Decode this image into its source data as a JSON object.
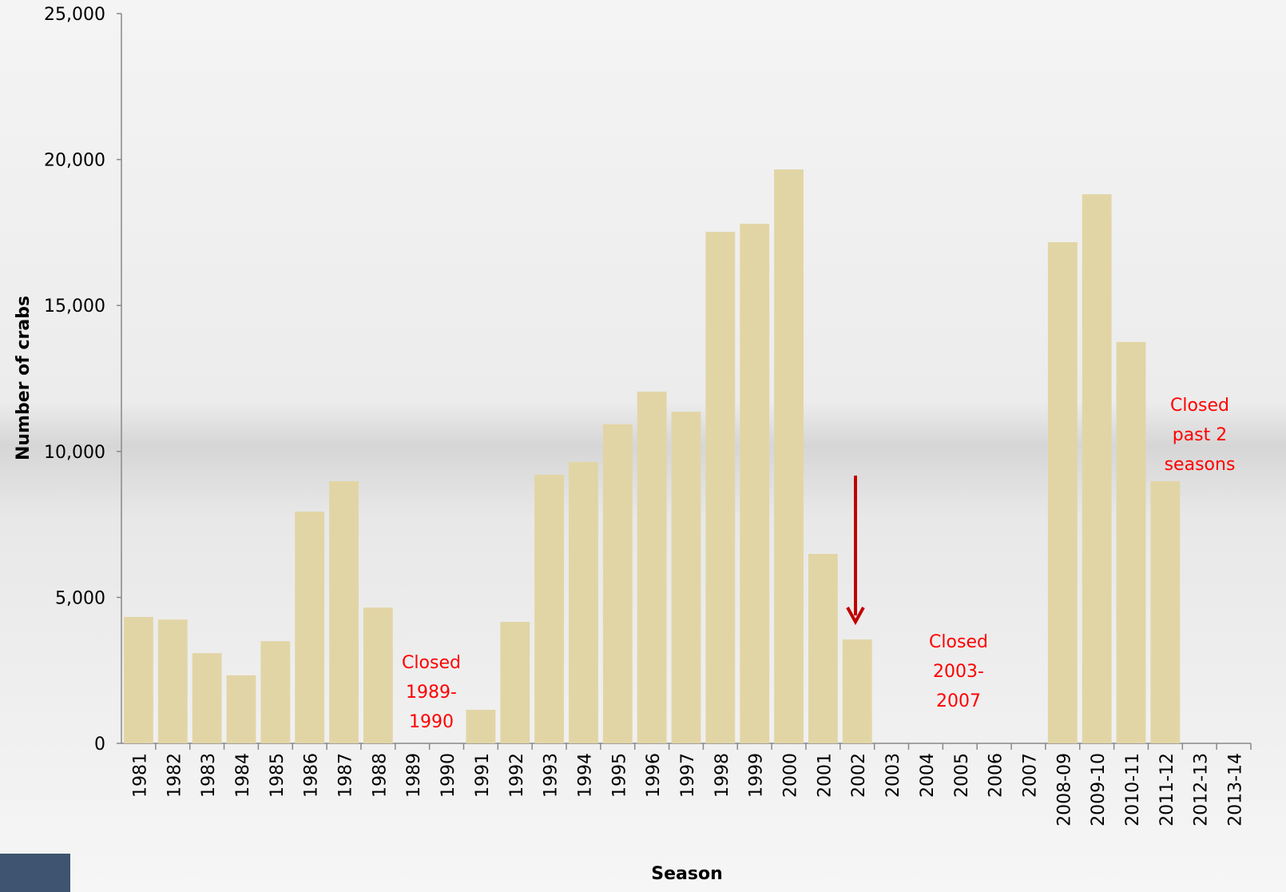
{
  "chart_data": {
    "type": "bar",
    "x_label": "Season",
    "y_label": "Number of crabs",
    "categories": [
      "1981",
      "1982",
      "1983",
      "1984",
      "1985",
      "1986",
      "1987",
      "1988",
      "1989",
      "1990",
      "1991",
      "1992",
      "1993",
      "1994",
      "1995",
      "1996",
      "1997",
      "1998",
      "1999",
      "2000",
      "2001",
      "2002",
      "2003",
      "2004",
      "2005",
      "2006",
      "2007",
      "2008-09",
      "2009-10",
      "2010-11",
      "2011-12",
      "2012-13",
      "2013-14"
    ],
    "values": [
      4330,
      4240,
      3090,
      2330,
      3500,
      7940,
      8980,
      4650,
      null,
      null,
      1150,
      4160,
      9200,
      9640,
      10930,
      12050,
      11360,
      17520,
      17800,
      19660,
      6490,
      3560,
      null,
      null,
      null,
      null,
      null,
      17170,
      18810,
      13750,
      8980,
      null,
      null
    ],
    "color": "#e2d5a5",
    "ylim": [
      0,
      25000
    ],
    "yticks": [
      0,
      {
        "value": 5000,
        "label": "5,000"
      },
      {
        "value": 10000,
        "label": "10,000"
      },
      {
        "value": 15000,
        "label": "15,000"
      },
      {
        "value": 20000,
        "label": "20,000"
      },
      {
        "value": 25000,
        "label": "25,000"
      }
    ],
    "annotations": [
      {
        "lines": [
          "Closed",
          "1989-",
          "1990"
        ],
        "color": "#ff0000"
      },
      {
        "lines": [
          "Closed",
          "2003-",
          "2007"
        ],
        "color": "#ff0000"
      },
      {
        "lines": [
          "Closed",
          "past 2",
          "seasons"
        ],
        "color": "#ff0000"
      }
    ]
  }
}
